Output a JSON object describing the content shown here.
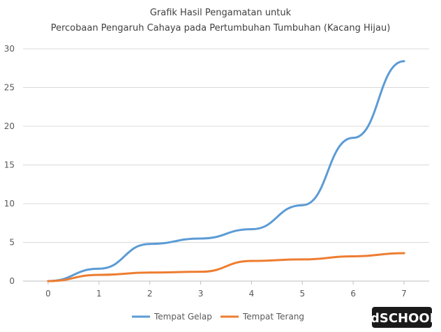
{
  "chart_data": {
    "type": "line",
    "title_lines": [
      "Grafik Hasil Pengamatan untuk",
      "Percobaan Pengaruh Cahaya pada Pertumbuhan Tumbuhan (Kacang Hijau)"
    ],
    "x": [
      0,
      1,
      2,
      3,
      4,
      5,
      6,
      7
    ],
    "ylim": [
      0,
      30
    ],
    "yticks": [
      0,
      5,
      10,
      15,
      20,
      25,
      30
    ],
    "grid": true,
    "legend_position": "bottom",
    "series": [
      {
        "name": "Tempat Gelap",
        "color": "#5b9bd5",
        "values": [
          0,
          1.6,
          4.8,
          5.5,
          6.7,
          9.8,
          18.5,
          28.4
        ]
      },
      {
        "name": "Tempat Terang",
        "color": "#ed7d31",
        "values": [
          0,
          0.8,
          1.1,
          1.2,
          2.6,
          2.8,
          3.2,
          3.6
        ]
      }
    ]
  },
  "logo": {
    "text": "idSCHOOL"
  }
}
